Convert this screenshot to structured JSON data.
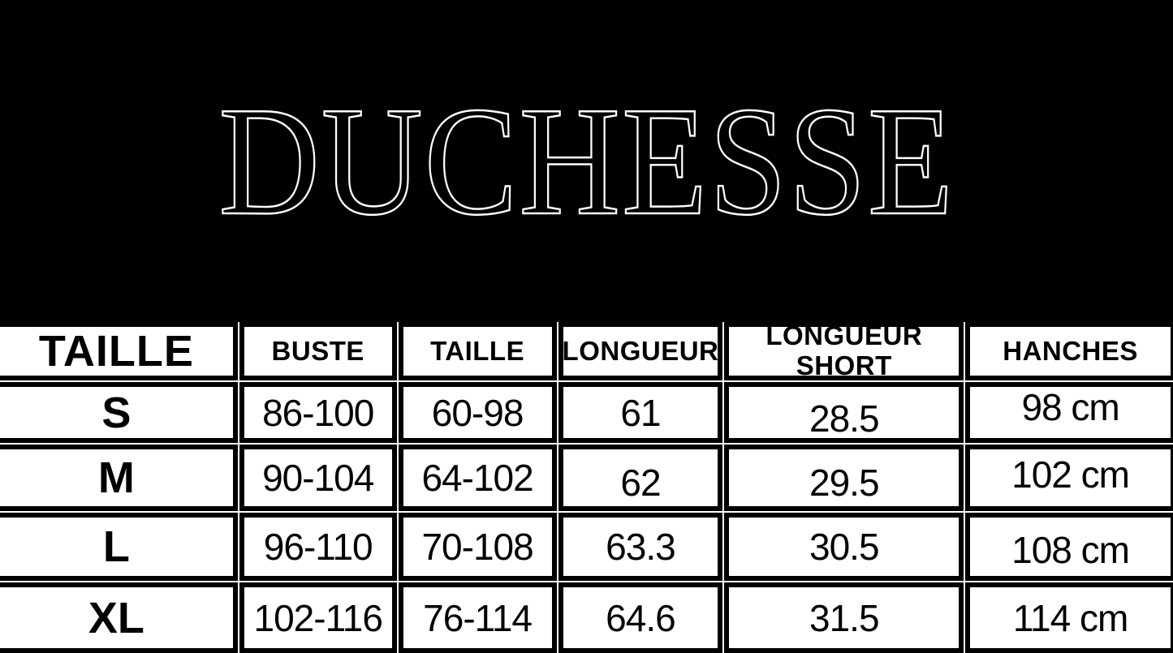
{
  "brand": {
    "logo_text": "DUCHESSE"
  },
  "colors": {
    "background": "#000000",
    "cell_background": "#ffffff",
    "cell_border": "#000000",
    "cell_text": "#000000",
    "logo_outline": "#ffffff"
  },
  "chart_data": {
    "type": "table",
    "title": "DUCHESSE",
    "columns": [
      "TAILLE",
      "BUSTE",
      "TAILLE",
      "LONGUEUR",
      "LONGUEUR SHORT",
      "HANCHES"
    ],
    "rows": [
      [
        "S",
        "86-100",
        "60-98",
        "61",
        "28.5",
        "98 cm"
      ],
      [
        "M",
        "90-104",
        "64-102",
        "62",
        "29.5",
        "102 cm"
      ],
      [
        "L",
        "96-110",
        "70-108",
        "63.3",
        "30.5",
        "108 cm"
      ],
      [
        "XL",
        "102-116",
        "76-114",
        "64.6",
        "31.5",
        "114 cm"
      ]
    ],
    "layout": {
      "header_row": true,
      "grid": "thick-black-borders",
      "units": "cm"
    }
  }
}
